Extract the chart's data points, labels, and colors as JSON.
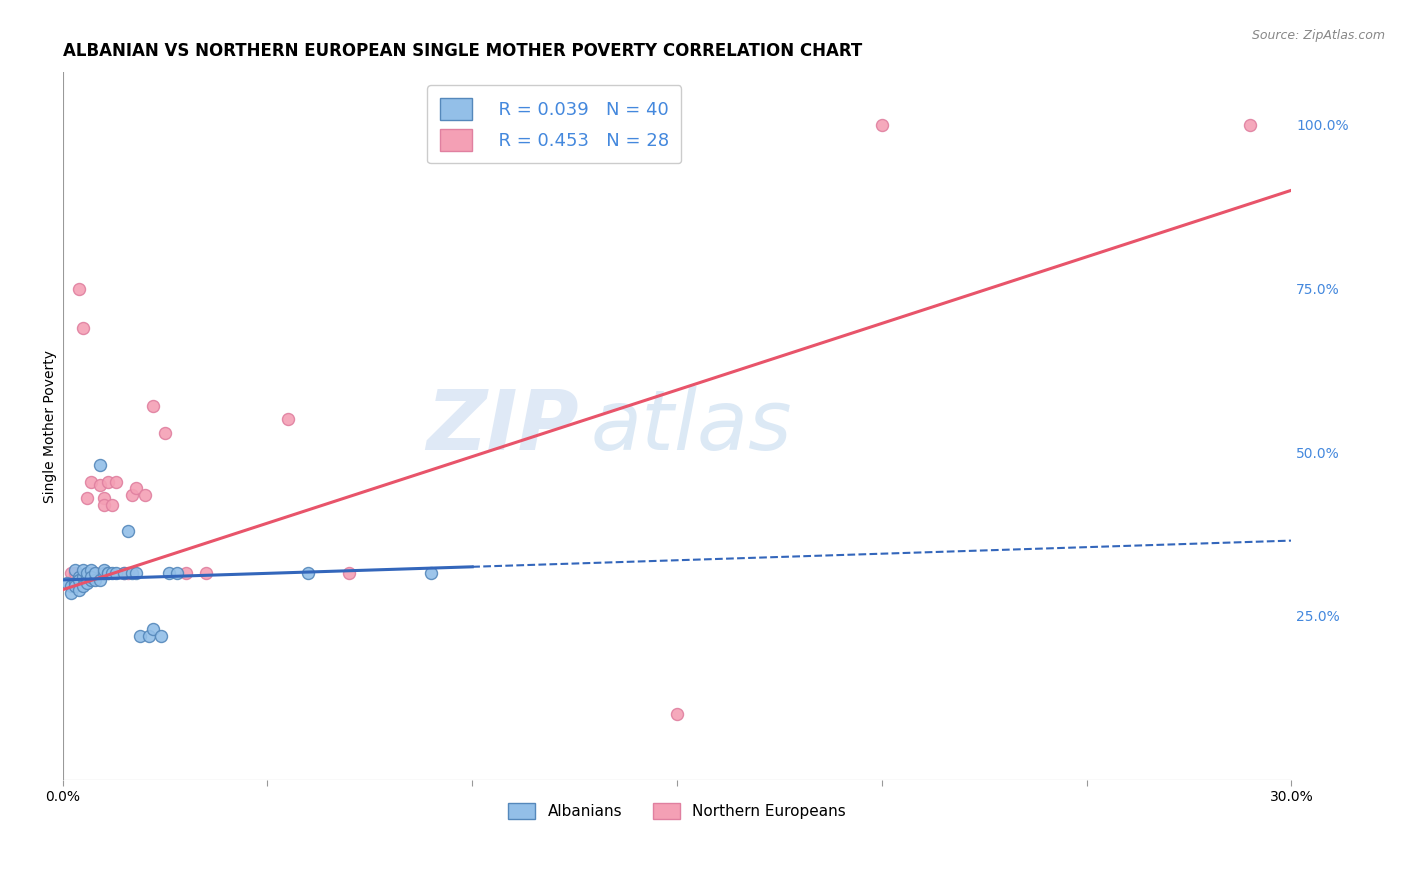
{
  "title": "ALBANIAN VS NORTHERN EUROPEAN SINGLE MOTHER POVERTY CORRELATION CHART",
  "source": "Source: ZipAtlas.com",
  "ylabel": "Single Mother Poverty",
  "legend_albanians": "Albanians",
  "legend_northern_europeans": "Northern Europeans",
  "legend_r1": "R = 0.039",
  "legend_n1": "N = 40",
  "legend_r2": "R = 0.453",
  "legend_n2": "N = 28",
  "watermark_zip": "ZIP",
  "watermark_atlas": "atlas",
  "color_albanian": "#93bfe8",
  "color_ne": "#f4a0b5",
  "color_trendline_albanian": "#3366bb",
  "color_trendline_ne": "#e8546a",
  "background_color": "#ffffff",
  "grid_color": "#cccccc",
  "title_fontsize": 12,
  "axis_label_fontsize": 10,
  "tick_fontsize": 10,
  "right_tick_color": "#4488dd",
  "marker_size": 75,
  "marker_edge_width": 1.0,
  "xmin": 0.0,
  "xmax": 0.3,
  "ymin": 0.0,
  "ymax": 1.08,
  "scatter_albanians_x": [
    0.001,
    0.002,
    0.002,
    0.003,
    0.003,
    0.003,
    0.004,
    0.004,
    0.004,
    0.005,
    0.005,
    0.005,
    0.006,
    0.006,
    0.006,
    0.007,
    0.007,
    0.007,
    0.008,
    0.008,
    0.009,
    0.009,
    0.01,
    0.01,
    0.011,
    0.011,
    0.012,
    0.013,
    0.015,
    0.016,
    0.017,
    0.018,
    0.019,
    0.021,
    0.022,
    0.024,
    0.026,
    0.028,
    0.06,
    0.09
  ],
  "scatter_albanians_y": [
    0.3,
    0.295,
    0.285,
    0.32,
    0.3,
    0.295,
    0.31,
    0.305,
    0.29,
    0.31,
    0.32,
    0.295,
    0.31,
    0.315,
    0.3,
    0.305,
    0.32,
    0.31,
    0.305,
    0.315,
    0.305,
    0.48,
    0.315,
    0.32,
    0.315,
    0.315,
    0.315,
    0.315,
    0.315,
    0.38,
    0.315,
    0.315,
    0.22,
    0.22,
    0.23,
    0.22,
    0.315,
    0.315,
    0.315,
    0.315
  ],
  "scatter_ne_x": [
    0.002,
    0.003,
    0.004,
    0.005,
    0.006,
    0.007,
    0.007,
    0.008,
    0.009,
    0.01,
    0.01,
    0.011,
    0.012,
    0.013,
    0.015,
    0.016,
    0.017,
    0.018,
    0.02,
    0.022,
    0.025,
    0.03,
    0.035,
    0.055,
    0.07,
    0.15,
    0.2,
    0.29
  ],
  "scatter_ne_y": [
    0.315,
    0.315,
    0.75,
    0.69,
    0.43,
    0.455,
    0.315,
    0.315,
    0.45,
    0.43,
    0.42,
    0.455,
    0.42,
    0.455,
    0.315,
    0.315,
    0.435,
    0.445,
    0.435,
    0.57,
    0.53,
    0.315,
    0.315,
    0.55,
    0.315,
    0.1,
    1.0,
    1.0
  ],
  "trendline_ne_x0": 0.0,
  "trendline_ne_y0": 0.29,
  "trendline_ne_x1": 0.3,
  "trendline_ne_y1": 0.9,
  "trendline_alb_solid_x0": 0.0,
  "trendline_alb_solid_y0": 0.305,
  "trendline_alb_solid_x1": 0.1,
  "trendline_alb_solid_y1": 0.325,
  "trendline_alb_dash_x0": 0.1,
  "trendline_alb_dash_y0": 0.325,
  "trendline_alb_dash_x1": 0.3,
  "trendline_alb_dash_y1": 0.365
}
